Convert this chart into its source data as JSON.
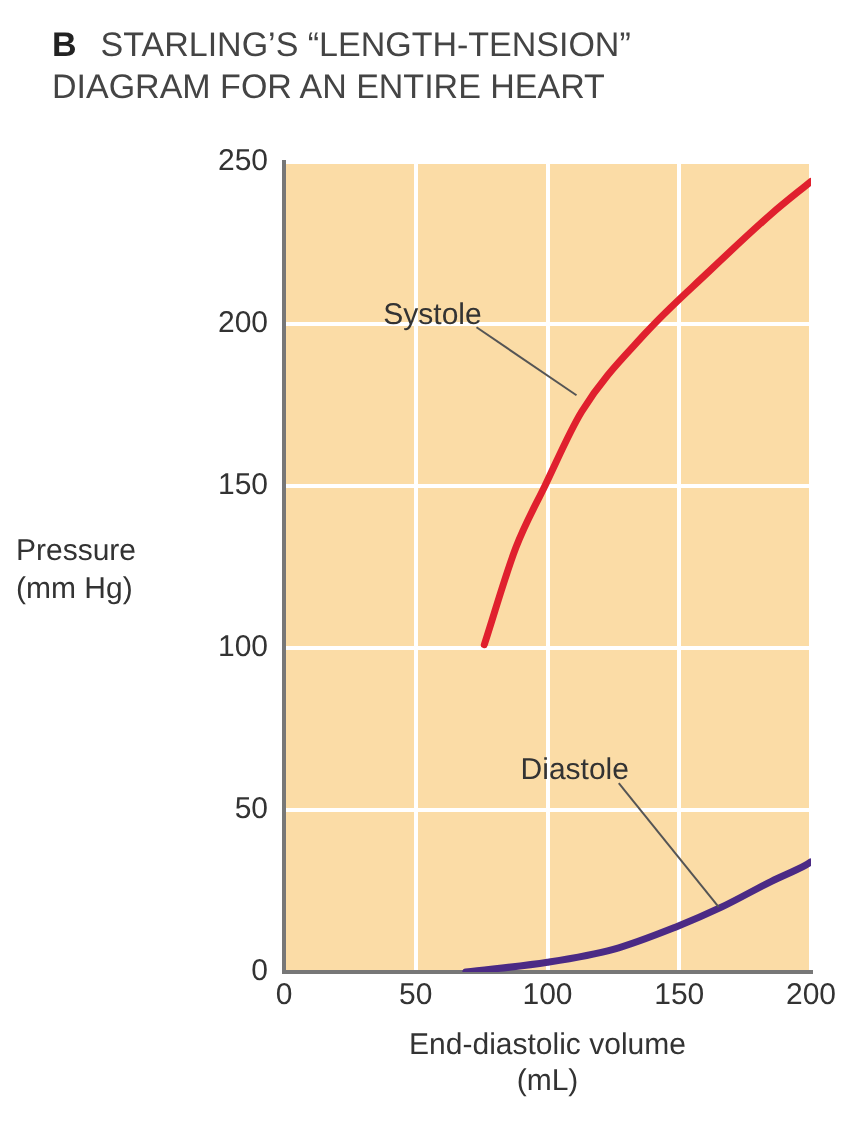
{
  "chart_data": {
    "type": "line",
    "title": "STARLING’S “LENGTH-TENSION” DIAGRAM FOR AN ENTIRE HEART",
    "xlabel": "End-diastolic volume (mL)",
    "ylabel": "Pressure (mm Hg)",
    "xlim": [
      0,
      200
    ],
    "xticks": [
      0,
      50,
      100,
      150,
      200
    ],
    "ylim": [
      0,
      250
    ],
    "yticks": [
      0,
      50,
      100,
      150,
      200,
      250
    ],
    "grid": true,
    "legend": false,
    "marker": "none",
    "line_style": "solid",
    "series": [
      {
        "color": "#e0202e",
        "x": [
          76,
          88,
          99,
          113,
          137,
          161,
          185,
          200
        ],
        "values": [
          101,
          131,
          150,
          173,
          197,
          216,
          234,
          244
        ]
      },
      {
        "color": "#4b2a85",
        "x": [
          69,
          100,
          125,
          149,
          166,
          185,
          198,
          200
        ],
        "values": [
          0,
          3,
          7,
          14,
          20,
          28,
          33,
          34
        ]
      }
    ],
    "annotations": [
      "B",
      {
        "text": "Systole",
        "x": 111,
        "y": 178
      },
      {
        "text": "Diastole",
        "x": 165,
        "y": 20
      }
    ]
  }
}
